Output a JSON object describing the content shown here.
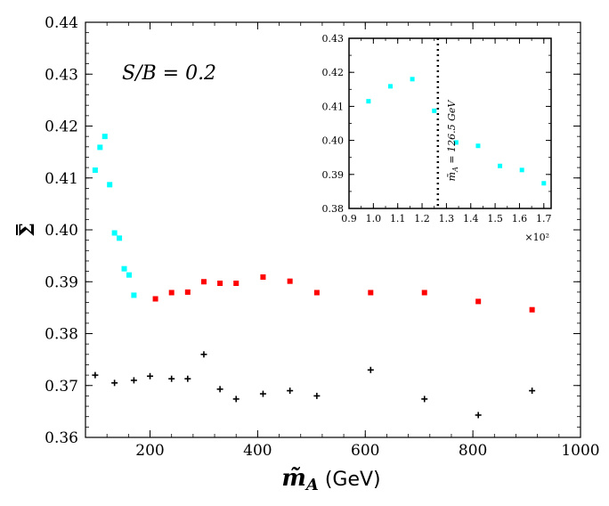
{
  "chart_data": [
    {
      "type": "scatter",
      "title": "",
      "xlabel": "m̃_A (GeV)",
      "xlabel_symbol": "m̃",
      "xlabel_subscript": "A",
      "xlabel_unit": " (GeV)",
      "ylabel": "Σ̄",
      "ylabel_symbol": "Σ",
      "xlim": [
        80,
        1000
      ],
      "ylim": [
        0.36,
        0.44
      ],
      "xticks": [
        200,
        400,
        600,
        800,
        1000
      ],
      "xtick_labels": [
        "200",
        "400",
        "600",
        "800",
        "1000"
      ],
      "yticks": [
        0.36,
        0.37,
        0.38,
        0.39,
        0.4,
        0.41,
        0.42,
        0.43,
        0.44
      ],
      "ytick_labels": [
        "0.36",
        "0.37",
        "0.38",
        "0.39",
        "0.40",
        "0.41",
        "0.42",
        "0.43",
        "0.44"
      ],
      "annotation": "S/B = 0.2",
      "grid": false,
      "series": [
        {
          "color": "#00ffff",
          "marker": "square",
          "x": [
            98,
            107,
            116,
            125,
            134,
            143,
            152,
            161,
            170
          ],
          "y": [
            0.4115,
            0.4159,
            0.418,
            0.4087,
            0.3994,
            0.3984,
            0.3925,
            0.3913,
            0.3874
          ]
        },
        {
          "color": "#ff0000",
          "marker": "square",
          "x": [
            210,
            240,
            270,
            300,
            330,
            360,
            410,
            460,
            510,
            610,
            710,
            810,
            910
          ],
          "y": [
            0.3867,
            0.3879,
            0.388,
            0.39,
            0.3897,
            0.3897,
            0.3909,
            0.3901,
            0.3879,
            0.3879,
            0.3879,
            0.3862,
            0.3846
          ]
        },
        {
          "color": "#000000",
          "marker": "plus",
          "x": [
            98,
            134,
            170,
            200,
            240,
            270,
            300,
            330,
            360,
            410,
            460,
            510,
            610,
            710,
            810,
            910
          ],
          "y": [
            0.372,
            0.3705,
            0.371,
            0.3718,
            0.3713,
            0.3713,
            0.376,
            0.3693,
            0.3674,
            0.3684,
            0.369,
            0.368,
            0.373,
            0.3674,
            0.3643,
            0.369
          ]
        }
      ]
    },
    {
      "type": "scatter",
      "title": "",
      "xlim": [
        0.9,
        1.73
      ],
      "ylim": [
        0.38,
        0.43
      ],
      "xticks": [
        0.9,
        1.0,
        1.1,
        1.2,
        1.3,
        1.4,
        1.5,
        1.6,
        1.7
      ],
      "xtick_labels": [
        "0.9",
        "1.0",
        "1.1",
        "1.2",
        "1.3",
        "1.4",
        "1.5",
        "1.6",
        "1.7"
      ],
      "yticks": [
        0.38,
        0.39,
        0.4,
        0.41,
        0.42,
        0.43
      ],
      "ytick_labels": [
        "0.38",
        "0.39",
        "0.40",
        "0.41",
        "0.42",
        "0.43"
      ],
      "x_multiplier": "×10²",
      "vline": {
        "x": 1.265,
        "label": "m̃_A = 126.5 GeV",
        "label_symbol": "m̃",
        "label_subscript": "A",
        "label_rest": " = 126.5 GeV",
        "style": "dotted"
      },
      "grid": false,
      "series": [
        {
          "color": "#00ffff",
          "marker": "square",
          "x": [
            0.98,
            1.07,
            1.16,
            1.25,
            1.34,
            1.43,
            1.52,
            1.61,
            1.7
          ],
          "y": [
            0.4115,
            0.4159,
            0.418,
            0.4087,
            0.3994,
            0.3984,
            0.3925,
            0.3913,
            0.3874
          ]
        }
      ]
    }
  ]
}
